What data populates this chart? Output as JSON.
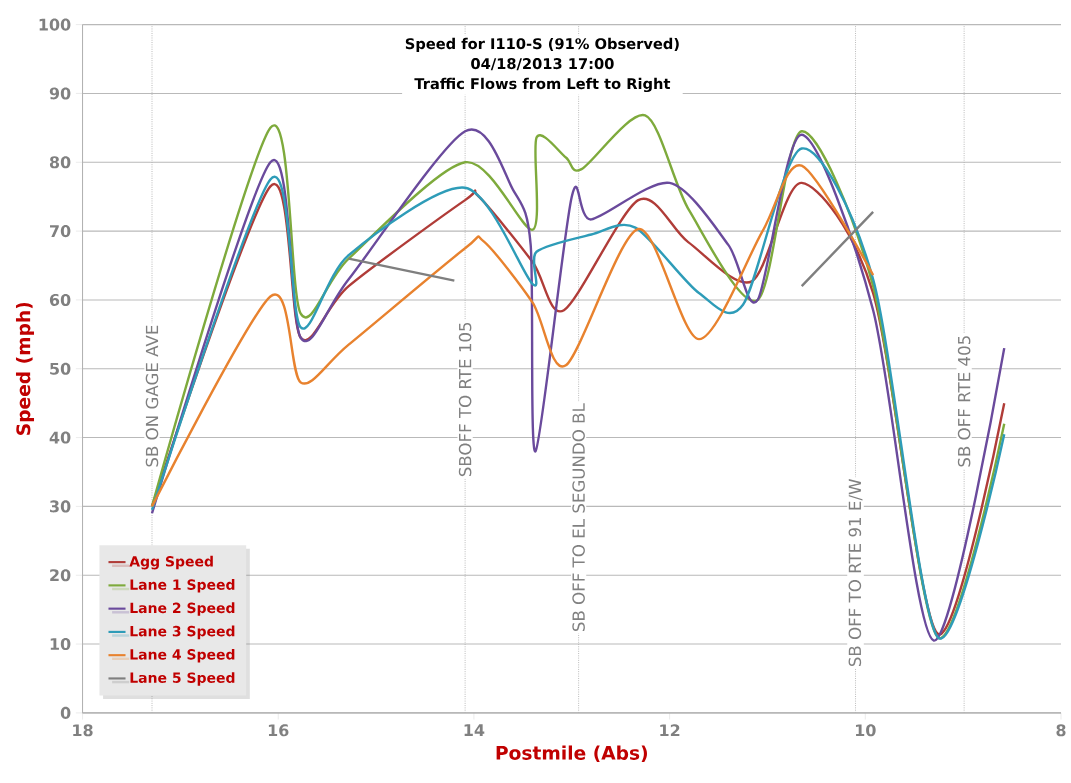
{
  "chart_data": {
    "type": "line",
    "title": "Speed for I110-S (91% Observed)",
    "subtitle": "04/18/2013  17:00",
    "annotations": [
      "Traffic Flows from Left to Right"
    ],
    "xlabel": "Postmile (Abs)",
    "ylabel": "Speed (mph)",
    "xlim": [
      18,
      8
    ],
    "ylim": [
      0,
      100
    ],
    "xticks": [
      18,
      16,
      14,
      12,
      10,
      8
    ],
    "yticks": [
      0,
      10,
      20,
      30,
      40,
      50,
      60,
      70,
      80,
      90,
      100
    ],
    "grid": "y",
    "legend": "bottom left",
    "marker": "none",
    "line_style": "solid",
    "series": [
      {
        "name": "Agg Speed",
        "color": "#b03c38",
        "x": [
          17.29,
          16.08,
          15.77,
          15.28,
          14.09,
          13.95,
          13.4,
          13.08,
          12.32,
          11.81,
          11.16,
          10.65,
          9.92,
          9.26,
          8.58
        ],
        "values": [
          30,
          76.5,
          54.5,
          62,
          74.5,
          75,
          65.5,
          58.5,
          74.5,
          68.4,
          62.7,
          77,
          61,
          11.5,
          45
        ]
      },
      {
        "name": "Lane 1 Speed",
        "color": "#7eaa3c",
        "x": [
          17.29,
          16.08,
          15.77,
          15.28,
          14.09,
          13.4,
          13.36,
          13.06,
          12.9,
          12.25,
          11.8,
          11.1,
          10.65,
          9.92,
          9.26,
          8.58
        ],
        "values": [
          30,
          85,
          58,
          66,
          80,
          70.2,
          83.6,
          80.7,
          79,
          86.8,
          73,
          60,
          84.5,
          62,
          11,
          42
        ]
      },
      {
        "name": "Lane 2 Speed",
        "color": "#6a4a9c",
        "x": [
          17.29,
          16.08,
          15.77,
          15.28,
          14.09,
          13.6,
          13.42,
          13.37,
          13.0,
          12.8,
          12.0,
          11.4,
          11.1,
          10.65,
          9.92,
          9.3,
          8.58
        ],
        "values": [
          29,
          80,
          54.5,
          63,
          84.5,
          76,
          68,
          38,
          75,
          71.7,
          77,
          68,
          60,
          84,
          58.5,
          10.5,
          53
        ]
      },
      {
        "name": "Lane 3 Speed",
        "color": "#2e9cb8",
        "x": [
          17.29,
          16.08,
          15.77,
          15.28,
          14.09,
          13.4,
          13.36,
          12.8,
          12.35,
          11.7,
          11.25,
          10.65,
          9.92,
          9.26,
          8.58
        ],
        "values": [
          29.5,
          77.5,
          56,
          66.5,
          76.3,
          62.3,
          67,
          69.5,
          70.5,
          61,
          59.3,
          82,
          63,
          11,
          40.5
        ]
      },
      {
        "name": "Lane 4 Speed",
        "color": "#e8822e",
        "x": [
          17.29,
          16.08,
          15.77,
          15.28,
          14.09,
          13.9,
          13.4,
          13.06,
          12.32,
          11.7,
          11.05,
          10.65,
          9.92
        ],
        "values": [
          30,
          60.5,
          48,
          53.5,
          67.5,
          68.5,
          59.6,
          50.5,
          70.3,
          54.3,
          70,
          79.5,
          63.6
        ]
      },
      {
        "name": "Lane 5 Speed",
        "color": "#7f7f7f",
        "x": [
          15.28,
          14.2,
          12,
          10.65,
          9.92
        ],
        "values": [
          66,
          62.8,
          null,
          62,
          72.8
        ]
      }
    ],
    "ref_lines": [
      {
        "axis": "x",
        "value": 17.29,
        "label": "SB ON GAGE AVE"
      },
      {
        "axis": "x",
        "value": 14.09,
        "label": "SBOFF TO RTE 105"
      },
      {
        "axis": "x",
        "value": 12.93,
        "label": "SB OFF TO EL SEGUNDO BL"
      },
      {
        "axis": "x",
        "value": 10.1,
        "label": "SB OFF TO RTE 91 E/W"
      },
      {
        "axis": "x",
        "value": 8.99,
        "label": "SB OFF RTE 405"
      }
    ]
  }
}
